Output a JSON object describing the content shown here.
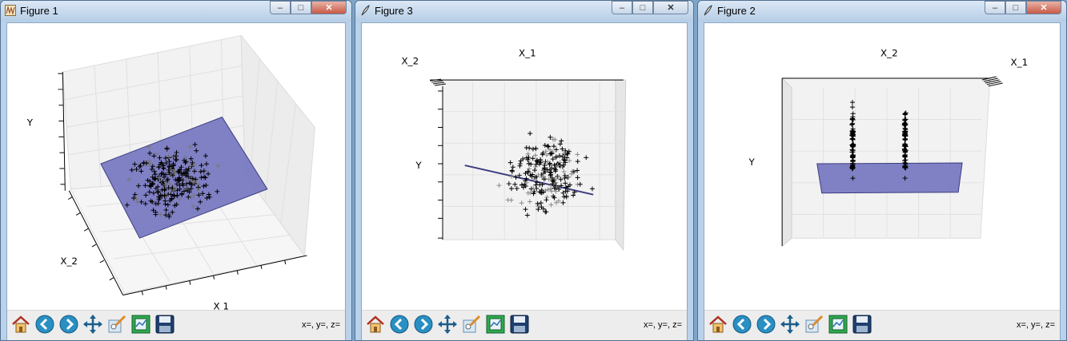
{
  "windows": [
    {
      "title": "Figure 1",
      "coords": "x=, y=, z=",
      "axis_labels": {
        "y": "Y",
        "x2": "X_2",
        "x1": "X 1"
      }
    },
    {
      "title": "Figure 3",
      "coords": "x=, y=, z=",
      "axis_labels": {
        "x1": "X_1",
        "x2": "X_2",
        "y": "Y"
      }
    },
    {
      "title": "Figure 2",
      "coords": "x=, y=, z=",
      "axis_labels": {
        "x2": "X_2",
        "x1": "X_1",
        "y": "Y"
      }
    }
  ],
  "window_controls": {
    "minimize": "–",
    "maximize": "□",
    "close": "✕"
  },
  "toolbar_icons": [
    "home-icon",
    "back-icon",
    "forward-icon",
    "pan-icon",
    "zoom-icon",
    "configure-subplots-icon",
    "save-icon"
  ],
  "colors": {
    "plane_fill": "#7373c0",
    "plane_edge": "#3c3c80",
    "marker": "#000000"
  }
}
